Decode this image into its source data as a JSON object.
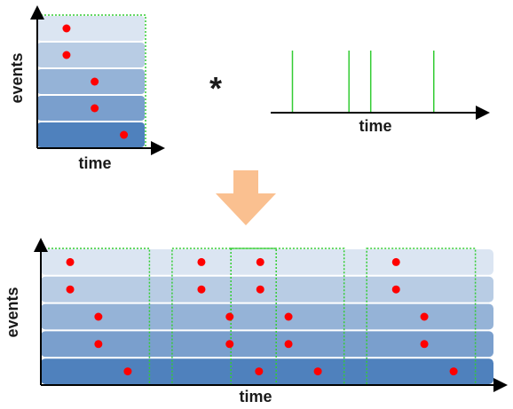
{
  "top_left_panel": {
    "ylabel": "events",
    "xlabel": "time",
    "rows": 5,
    "row_colors": [
      "#dbe5f2",
      "#b8cce4",
      "#95b3d7",
      "#7a9fcd",
      "#4f81bd"
    ],
    "event_times": [
      0.27,
      0.27,
      0.53,
      0.53,
      0.8
    ]
  },
  "operator": {
    "symbol": "*"
  },
  "impulse_panel": {
    "xlabel": "time",
    "impulse_color": "#33cc33",
    "impulse_times": [
      0.1,
      0.36,
      0.46,
      0.75
    ]
  },
  "transform_arrow": {
    "color": "#fac090"
  },
  "result_panel": {
    "ylabel": "events",
    "xlabel": "time",
    "rows": 5,
    "row_colors": [
      "#dbe5f2",
      "#b8cce4",
      "#95b3d7",
      "#7a9fcd",
      "#4f81bd"
    ],
    "box_color": "#33cc33",
    "dot_color": "#ff0000",
    "copies": [
      {
        "start": 0,
        "width": 0.24
      },
      {
        "start": 0.29,
        "width": 0.38
      },
      {
        "start": 0.42,
        "width": 0.1
      },
      {
        "start": 0.72,
        "width": 0.24
      }
    ]
  }
}
